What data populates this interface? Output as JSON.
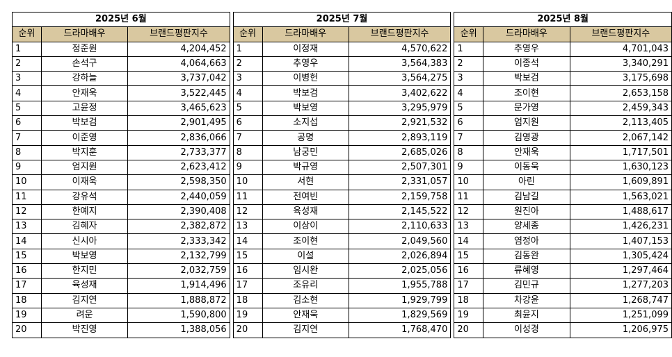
{
  "headers": {
    "rank": "순위",
    "actor": "드라마배우",
    "score": "브랜드평판지수"
  },
  "tables": [
    {
      "month": "2025년 6월",
      "rows": [
        {
          "rank": "1",
          "name": "정준원",
          "score": "4,204,452"
        },
        {
          "rank": "2",
          "name": "손석구",
          "score": "4,064,663"
        },
        {
          "rank": "3",
          "name": "강하늘",
          "score": "3,737,042"
        },
        {
          "rank": "4",
          "name": "안재욱",
          "score": "3,522,445"
        },
        {
          "rank": "5",
          "name": "고윤정",
          "score": "3,465,623"
        },
        {
          "rank": "6",
          "name": "박보검",
          "score": "2,901,495"
        },
        {
          "rank": "7",
          "name": "이준영",
          "score": "2,836,066"
        },
        {
          "rank": "8",
          "name": "박지훈",
          "score": "2,733,377"
        },
        {
          "rank": "9",
          "name": "엄지원",
          "score": "2,623,412"
        },
        {
          "rank": "10",
          "name": "이재욱",
          "score": "2,598,350"
        },
        {
          "rank": "11",
          "name": "강유석",
          "score": "2,440,059"
        },
        {
          "rank": "12",
          "name": "한예지",
          "score": "2,390,408"
        },
        {
          "rank": "13",
          "name": "김혜자",
          "score": "2,382,872"
        },
        {
          "rank": "14",
          "name": "신시아",
          "score": "2,333,342"
        },
        {
          "rank": "15",
          "name": "박보영",
          "score": "2,132,799"
        },
        {
          "rank": "16",
          "name": "한지민",
          "score": "2,032,759"
        },
        {
          "rank": "17",
          "name": "육성재",
          "score": "1,914,496"
        },
        {
          "rank": "18",
          "name": "김지연",
          "score": "1,888,872"
        },
        {
          "rank": "19",
          "name": "려운",
          "score": "1,590,800"
        },
        {
          "rank": "20",
          "name": "박진영",
          "score": "1,388,056"
        }
      ]
    },
    {
      "month": "2025년 7월",
      "rows": [
        {
          "rank": "1",
          "name": "이정재",
          "score": "4,570,622"
        },
        {
          "rank": "2",
          "name": "추영우",
          "score": "3,564,383"
        },
        {
          "rank": "3",
          "name": "이병헌",
          "score": "3,564,275"
        },
        {
          "rank": "4",
          "name": "박보검",
          "score": "3,402,622"
        },
        {
          "rank": "5",
          "name": "박보영",
          "score": "3,295,979"
        },
        {
          "rank": "6",
          "name": "소지섭",
          "score": "2,921,532"
        },
        {
          "rank": "7",
          "name": "공명",
          "score": "2,893,119"
        },
        {
          "rank": "8",
          "name": "남궁민",
          "score": "2,685,026"
        },
        {
          "rank": "9",
          "name": "박규영",
          "score": "2,507,301"
        },
        {
          "rank": "10",
          "name": "서현",
          "score": "2,331,057"
        },
        {
          "rank": "11",
          "name": "전여빈",
          "score": "2,159,758"
        },
        {
          "rank": "12",
          "name": "육성재",
          "score": "2,145,522"
        },
        {
          "rank": "13",
          "name": "이상이",
          "score": "2,110,633"
        },
        {
          "rank": "14",
          "name": "조이현",
          "score": "2,049,560"
        },
        {
          "rank": "15",
          "name": "이설",
          "score": "2,026,894"
        },
        {
          "rank": "16",
          "name": "임시완",
          "score": "2,025,056"
        },
        {
          "rank": "17",
          "name": "조유리",
          "score": "1,955,788"
        },
        {
          "rank": "18",
          "name": "김소현",
          "score": "1,929,799"
        },
        {
          "rank": "19",
          "name": "안재욱",
          "score": "1,829,569"
        },
        {
          "rank": "20",
          "name": "김지연",
          "score": "1,768,470"
        }
      ]
    },
    {
      "month": "2025년 8월",
      "rows": [
        {
          "rank": "1",
          "name": "추영우",
          "score": "4,701,043"
        },
        {
          "rank": "2",
          "name": "이종석",
          "score": "3,340,291"
        },
        {
          "rank": "3",
          "name": "박보검",
          "score": "3,175,698"
        },
        {
          "rank": "4",
          "name": "조이현",
          "score": "2,653,158"
        },
        {
          "rank": "5",
          "name": "문가영",
          "score": "2,459,343"
        },
        {
          "rank": "6",
          "name": "엄지원",
          "score": "2,113,405"
        },
        {
          "rank": "7",
          "name": "김영광",
          "score": "2,067,142"
        },
        {
          "rank": "8",
          "name": "안재욱",
          "score": "1,717,501"
        },
        {
          "rank": "9",
          "name": "이동욱",
          "score": "1,630,123"
        },
        {
          "rank": "10",
          "name": "아린",
          "score": "1,609,891"
        },
        {
          "rank": "11",
          "name": "김남길",
          "score": "1,563,021"
        },
        {
          "rank": "12",
          "name": "원진아",
          "score": "1,488,617"
        },
        {
          "rank": "13",
          "name": "양세종",
          "score": "1,426,231"
        },
        {
          "rank": "14",
          "name": "염정아",
          "score": "1,407,153"
        },
        {
          "rank": "15",
          "name": "김동완",
          "score": "1,305,424"
        },
        {
          "rank": "16",
          "name": "류혜영",
          "score": "1,297,464"
        },
        {
          "rank": "17",
          "name": "김민규",
          "score": "1,277,203"
        },
        {
          "rank": "18",
          "name": "차강윤",
          "score": "1,268,747"
        },
        {
          "rank": "19",
          "name": "최윤지",
          "score": "1,251,099"
        },
        {
          "rank": "20",
          "name": "이성경",
          "score": "1,206,975"
        }
      ]
    }
  ],
  "colors": {
    "header_bg": "#d9c8a0",
    "border": "#000000"
  }
}
